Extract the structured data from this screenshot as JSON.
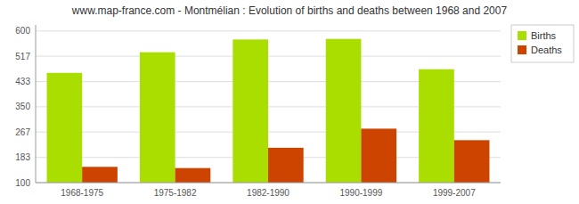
{
  "chart_data": {
    "type": "bar",
    "title": "www.map-france.com - Montmélian : Evolution of births and deaths between 1968 and 2007",
    "categories": [
      "1968-1975",
      "1975-1982",
      "1982-1990",
      "1990-1999",
      "1999-2007"
    ],
    "series": [
      {
        "name": "Births",
        "color": "#aadd00",
        "values": [
          462,
          530,
          572,
          574,
          474
        ]
      },
      {
        "name": "Deaths",
        "color": "#cc4400",
        "values": [
          152,
          148,
          215,
          278,
          240
        ]
      }
    ],
    "ylim": [
      100,
      620
    ],
    "yticks": [
      100,
      183,
      267,
      350,
      433,
      517,
      600
    ],
    "grid": true,
    "legend": "upper right"
  }
}
